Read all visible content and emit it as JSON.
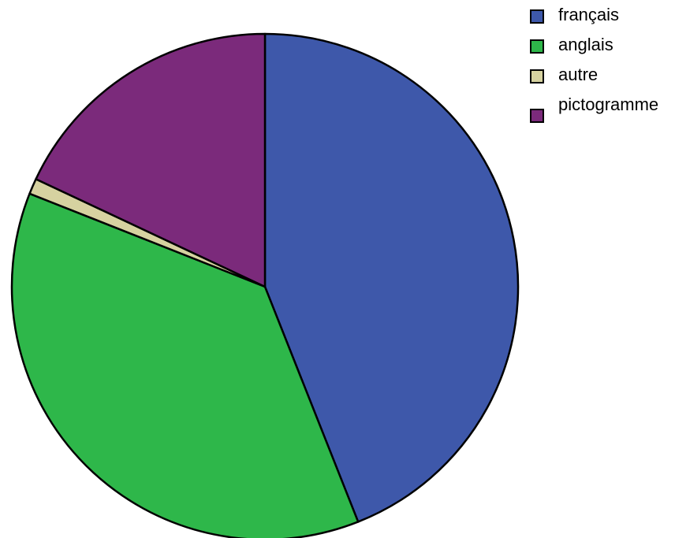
{
  "chart_data": {
    "type": "pie",
    "title": "",
    "slices": [
      {
        "label": "français",
        "value": 44.0,
        "color": "#3e58aa"
      },
      {
        "label": "anglais",
        "value": 37.0,
        "color": "#2eb74a"
      },
      {
        "label": "autre",
        "value": 1.0,
        "color": "#d6d2a0"
      },
      {
        "label": "pictogramme",
        "value": 18.0,
        "color": "#7b2a7b"
      }
    ],
    "legend_position": "top-right",
    "start_angle": "top, clockwise"
  }
}
